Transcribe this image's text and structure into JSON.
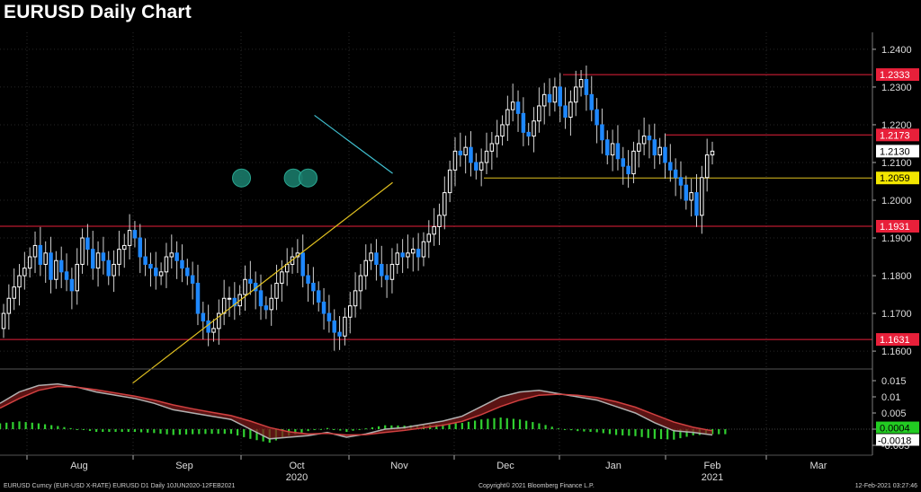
{
  "title": "EURUSD Daily Chart",
  "footer": {
    "left": "EURUSD Curncy (EUR-USD X-RATE) EURUSD D1  Daily 10JUN2020-12FEB2021",
    "center": "Copyright© 2021 Bloomberg Finance L.P.",
    "right": "12-Feb-2021 03:27:46"
  },
  "colors": {
    "background": "#000000",
    "candle_up": "#ffffff",
    "candle_down": "#1e88ff",
    "resistance": "#e8203a",
    "support_line": "#e0c020",
    "trend_down": "#40c0d0",
    "marker": "#1a7a6a",
    "macd_fast": "#b0b0b0",
    "macd_slow": "#d04040",
    "hist_pos": "#30d030",
    "hist_neg": "#30d030"
  },
  "chart_data": [
    {
      "type": "candlestick",
      "title": "EURUSD Daily Chart",
      "x_labels": [
        "Aug",
        "Sep",
        "Oct",
        "Nov",
        "Dec",
        "Jan",
        "Feb",
        "Mar"
      ],
      "year_labels": [
        "2020",
        "2021"
      ],
      "y_ticks": [
        1.16,
        1.17,
        1.18,
        1.19,
        1.2,
        1.21,
        1.22,
        1.23,
        1.24
      ],
      "ylim": [
        1.1555,
        1.2445
      ],
      "last_price": "1.2130",
      "horizontal_levels": [
        {
          "label": "1.2333",
          "value": 1.2333,
          "kind": "resistance"
        },
        {
          "label": "1.2173",
          "value": 1.2173,
          "kind": "resistance"
        },
        {
          "label": "1.2059",
          "value": 1.2059,
          "kind": "neckline"
        },
        {
          "label": "1.1931",
          "value": 1.1931,
          "kind": "resistance"
        },
        {
          "label": "1.1631",
          "value": 1.1631,
          "kind": "resistance"
        }
      ],
      "trendlines": [
        {
          "kind": "support",
          "from": {
            "day": 1.0,
            "price": 1.1515
          },
          "to": {
            "day": 3.46,
            "price": 1.2047
          }
        },
        {
          "kind": "resistance",
          "from": {
            "day": 2.72,
            "price": 1.2225
          },
          "to": {
            "day": 3.46,
            "price": 1.2071
          }
        }
      ],
      "markers": [
        {
          "day": 2.03,
          "price": 1.2059
        },
        {
          "day": 2.52,
          "price": 1.2059
        },
        {
          "day": 2.66,
          "price": 1.2059
        }
      ],
      "closes": [
        1.17,
        1.174,
        1.177,
        1.18,
        1.182,
        1.185,
        1.188,
        1.183,
        1.186,
        1.179,
        1.184,
        1.181,
        1.179,
        1.176,
        1.183,
        1.19,
        1.187,
        1.182,
        1.186,
        1.184,
        1.18,
        1.183,
        1.187,
        1.188,
        1.192,
        1.19,
        1.185,
        1.183,
        1.182,
        1.18,
        1.181,
        1.185,
        1.186,
        1.184,
        1.182,
        1.18,
        1.178,
        1.17,
        1.168,
        1.165,
        1.166,
        1.17,
        1.174,
        1.174,
        1.172,
        1.175,
        1.179,
        1.178,
        1.176,
        1.172,
        1.171,
        1.174,
        1.178,
        1.181,
        1.183,
        1.185,
        1.186,
        1.18,
        1.178,
        1.176,
        1.173,
        1.17,
        1.168,
        1.165,
        1.164,
        1.169,
        1.172,
        1.176,
        1.18,
        1.184,
        1.186,
        1.183,
        1.18,
        1.179,
        1.183,
        1.186,
        1.185,
        1.186,
        1.187,
        1.185,
        1.189,
        1.191,
        1.193,
        1.196,
        1.202,
        1.208,
        1.213,
        1.212,
        1.214,
        1.21,
        1.208,
        1.21,
        1.213,
        1.215,
        1.217,
        1.22,
        1.224,
        1.226,
        1.223,
        1.218,
        1.217,
        1.221,
        1.225,
        1.228,
        1.226,
        1.23,
        1.225,
        1.222,
        1.226,
        1.23,
        1.232,
        1.228,
        1.224,
        1.22,
        1.216,
        1.212,
        1.215,
        1.211,
        1.209,
        1.207,
        1.213,
        1.215,
        1.217,
        1.216,
        1.212,
        1.214,
        1.21,
        1.208,
        1.206,
        1.204,
        1.2,
        1.202,
        1.196,
        1.206,
        1.212,
        1.213
      ]
    },
    {
      "type": "line",
      "title": "MACD",
      "y_ticks": [
        0.015,
        0.01,
        0.005,
        0.0,
        -0.005
      ],
      "y_tick_labels": [
        "0.015",
        "0.01",
        "0.005",
        "",
        "-0.005"
      ],
      "ylim": [
        -0.0075,
        0.0175
      ],
      "value_labels": [
        "0.0004",
        "-0.0018"
      ],
      "series": [
        {
          "name": "",
          "values": [
            0.008,
            0.0115,
            0.0135,
            0.014,
            0.013,
            0.0115,
            0.0105,
            0.0095,
            0.008,
            0.006,
            0.005,
            0.004,
            0.003,
            0.0,
            -0.003,
            -0.0025,
            -0.002,
            -0.001,
            -0.0025,
            -0.0015,
            0.0,
            0.0005,
            0.0015,
            0.0025,
            0.004,
            0.007,
            0.01,
            0.0115,
            0.012,
            0.011,
            0.01,
            0.009,
            0.007,
            0.005,
            0.002,
            -0.0005,
            -0.001,
            -0.0018
          ]
        },
        {
          "name": "",
          "values": [
            0.0065,
            0.0095,
            0.012,
            0.0132,
            0.013,
            0.0122,
            0.0112,
            0.0102,
            0.009,
            0.0075,
            0.0063,
            0.0052,
            0.0042,
            0.0025,
            0.0005,
            -0.0008,
            -0.0015,
            -0.0013,
            -0.0018,
            -0.0017,
            -0.001,
            -0.0004,
            0.0004,
            0.0012,
            0.0024,
            0.0045,
            0.007,
            0.009,
            0.0105,
            0.0108,
            0.0105,
            0.0098,
            0.0085,
            0.0068,
            0.0045,
            0.0022,
            0.0006,
            -0.0005
          ]
        }
      ]
    }
  ]
}
